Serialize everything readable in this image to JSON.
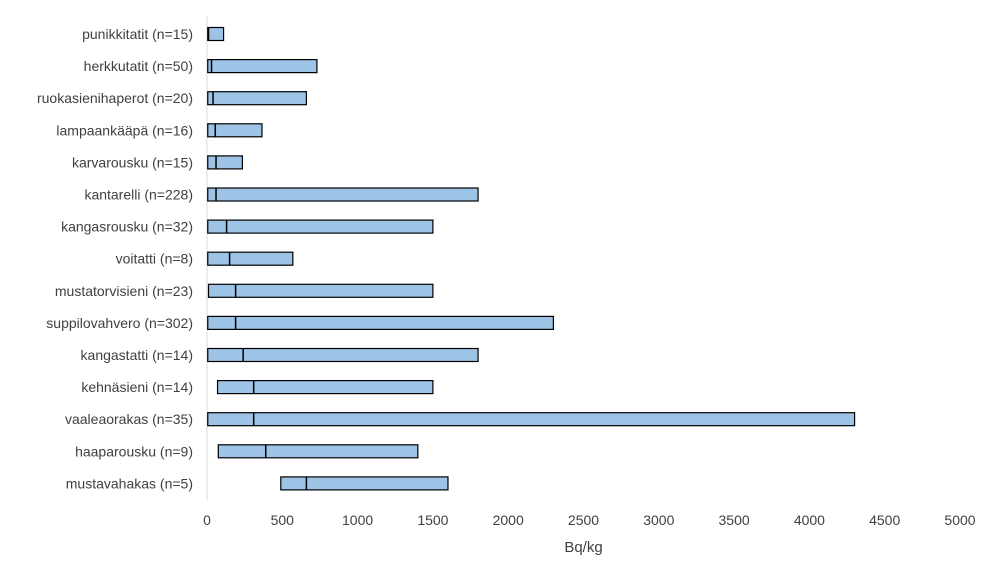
{
  "chart_data": {
    "type": "bar",
    "orientation": "horizontal",
    "subtype": "floating-range-with-median",
    "title": "",
    "xlabel": "Bq/kg",
    "ylabel": "",
    "xlim": [
      0,
      5000
    ],
    "x_ticks": [
      0,
      500,
      1000,
      1500,
      2000,
      2500,
      3000,
      3500,
      4000,
      4500,
      5000
    ],
    "grid": false,
    "legend": "none",
    "bar_color": "#9dc3e6",
    "bar_edge_color": "#000000",
    "categories": [
      "punikkitatit (n=15)",
      "herkkutatit (n=50)",
      "ruokasienihaperot (n=20)",
      "lampaankääpä (n=16)",
      "karvarousku (n=15)",
      "kantarelli (n=228)",
      "kangasrousku (n=32)",
      "voitatti (n=8)",
      "mustatorvisieni (n=23)",
      "suppilovahvero (n=302)",
      "kangastatti (n=14)",
      "kehnäsieni (n=14)",
      "vaaleaorakas (n=35)",
      "haaparousku (n=9)",
      "mustavahakas (n=5)"
    ],
    "series": [
      {
        "min": [
          5,
          5,
          5,
          5,
          5,
          5,
          5,
          5,
          10,
          5,
          5,
          70,
          5,
          75,
          490
        ],
        "median": [
          10,
          30,
          40,
          55,
          60,
          60,
          130,
          150,
          190,
          190,
          240,
          310,
          310,
          390,
          660
        ],
        "max": [
          110,
          730,
          660,
          365,
          235,
          1800,
          1500,
          570,
          1500,
          2300,
          1800,
          1500,
          4300,
          1400,
          1600
        ]
      }
    ]
  }
}
